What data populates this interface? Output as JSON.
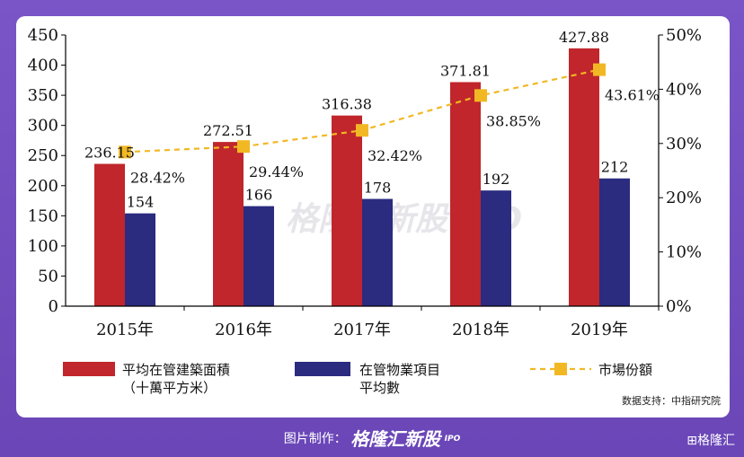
{
  "chart_data": {
    "type": "bar",
    "categories": [
      "2015年",
      "2016年",
      "2017年",
      "2018年",
      "2019年"
    ],
    "series": [
      {
        "name": "平均在管建築面積",
        "name_line2": "（十萬平方米）",
        "type": "bar",
        "axis": "left",
        "color": "#c0262b",
        "values": [
          236.15,
          272.51,
          316.38,
          371.81,
          427.88
        ],
        "labels": [
          "236.15",
          "272.51",
          "316.38",
          "371.81",
          "427.88"
        ]
      },
      {
        "name": "在管物業項目",
        "name_line2": "平均數",
        "type": "bar",
        "axis": "left",
        "color": "#2b2b80",
        "values": [
          154,
          166,
          178,
          192,
          212
        ],
        "labels": [
          "154",
          "166",
          "178",
          "192",
          "212"
        ]
      },
      {
        "name": "市場份額",
        "type": "line",
        "axis": "right",
        "color": "#f2b824",
        "values": [
          28.42,
          29.44,
          32.42,
          38.85,
          43.61
        ],
        "labels": [
          "28.42%",
          "29.44%",
          "32.42%",
          "38.85%",
          "43.61%"
        ]
      }
    ],
    "y_left": {
      "min": 0,
      "max": 450,
      "ticks": [
        "0",
        "50",
        "100",
        "150",
        "200",
        "250",
        "300",
        "350",
        "400",
        "450"
      ]
    },
    "y_right": {
      "min": 0,
      "max": 50,
      "ticks": [
        "0%",
        "10%",
        "20%",
        "30%",
        "40%",
        "50%"
      ]
    },
    "source": "数据支持：中指研究院",
    "watermark": "格隆汇新股 IPO"
  },
  "footer": {
    "prefix": "图片制作：",
    "brand": "格隆汇新股",
    "ipo": "IPO",
    "corner_logo": "⊞格隆汇"
  }
}
